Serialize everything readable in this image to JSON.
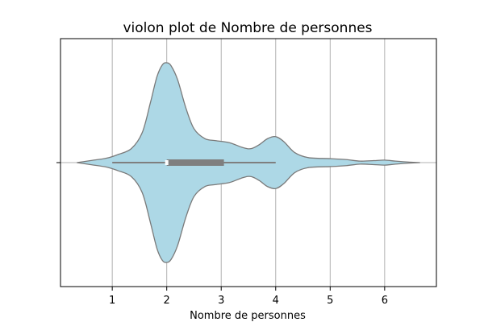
{
  "chart_data": {
    "type": "violin",
    "title": "violon plot de Nombre de personnes",
    "xlabel": "Nombre de personnes",
    "ylabel": "",
    "xlim": [
      0.05,
      6.95
    ],
    "xticks": [
      1,
      2,
      3,
      4,
      5,
      6
    ],
    "x_tick_labels": [
      "1",
      "2",
      "3",
      "4",
      "5",
      "6"
    ],
    "grid": true,
    "orientation": "horizontal",
    "violin": {
      "fill_color": "#add8e6",
      "edge_color": "#7a7a7a",
      "density_profile": [
        {
          "x": 0.35,
          "density": 0.0
        },
        {
          "x": 0.6,
          "density": 0.02
        },
        {
          "x": 0.9,
          "density": 0.045
        },
        {
          "x": 1.1,
          "density": 0.08
        },
        {
          "x": 1.35,
          "density": 0.14
        },
        {
          "x": 1.55,
          "density": 0.3
        },
        {
          "x": 1.7,
          "density": 0.6
        },
        {
          "x": 1.82,
          "density": 0.86
        },
        {
          "x": 1.92,
          "density": 0.98
        },
        {
          "x": 2.0,
          "density": 1.0
        },
        {
          "x": 2.08,
          "density": 0.97
        },
        {
          "x": 2.2,
          "density": 0.83
        },
        {
          "x": 2.35,
          "density": 0.55
        },
        {
          "x": 2.5,
          "density": 0.34
        },
        {
          "x": 2.7,
          "density": 0.24
        },
        {
          "x": 2.9,
          "density": 0.22
        },
        {
          "x": 3.15,
          "density": 0.2
        },
        {
          "x": 3.4,
          "density": 0.15
        },
        {
          "x": 3.55,
          "density": 0.14
        },
        {
          "x": 3.7,
          "density": 0.18
        },
        {
          "x": 3.85,
          "density": 0.24
        },
        {
          "x": 4.0,
          "density": 0.26
        },
        {
          "x": 4.15,
          "density": 0.21
        },
        {
          "x": 4.35,
          "density": 0.1
        },
        {
          "x": 4.6,
          "density": 0.05
        },
        {
          "x": 5.0,
          "density": 0.04
        },
        {
          "x": 5.3,
          "density": 0.03
        },
        {
          "x": 5.55,
          "density": 0.015
        },
        {
          "x": 5.8,
          "density": 0.02
        },
        {
          "x": 6.0,
          "density": 0.025
        },
        {
          "x": 6.2,
          "density": 0.015
        },
        {
          "x": 6.45,
          "density": 0.005
        },
        {
          "x": 6.65,
          "density": 0.0
        }
      ]
    },
    "box": {
      "whisker_low": 1.0,
      "q1": 2.0,
      "median": 2.0,
      "q3": 3.05,
      "whisker_high": 4.0,
      "color": "#7f7f7f"
    },
    "y_tick_labels": [
      ""
    ]
  }
}
